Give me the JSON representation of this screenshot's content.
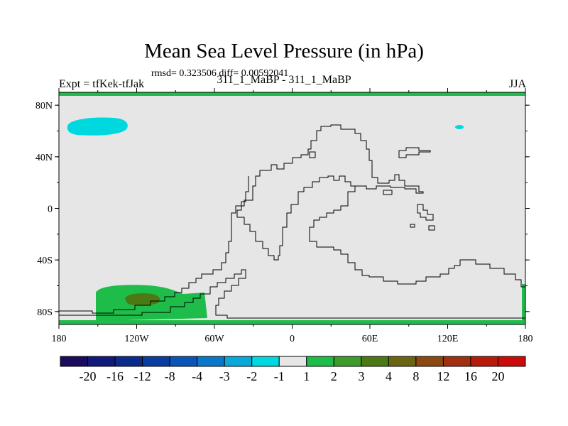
{
  "header": {
    "title": "Mean Sea Level Pressure (in hPa)",
    "stats": "rmsd= 0.323506 diff= 0.00592041",
    "left": "Expt = tfKek-tfJak",
    "center": "311_1_MaBP - 311_1_MaBP",
    "right": "JJA"
  },
  "map": {
    "background_color": "#e6e6e6",
    "frame_color": "#000000",
    "band_color": "#1ebd4a",
    "x_ticks": [
      "180",
      "120W",
      "60W",
      "0",
      "60E",
      "120E",
      "180"
    ],
    "y_ticks": [
      "80N",
      "40N",
      "0",
      "40S",
      "80S"
    ]
  },
  "colorbar": {
    "labels": [
      "-20",
      "-16",
      "-12",
      "-8",
      "-4",
      "-3",
      "-2",
      "-1",
      "1",
      "2",
      "3",
      "4",
      "8",
      "12",
      "16",
      "20"
    ],
    "colors": [
      "#1c0a5e",
      "#101a7a",
      "#0a2a8c",
      "#0a3da0",
      "#0a55b8",
      "#0a78c8",
      "#08a8d8",
      "#00d8e0",
      "#e6e6e6",
      "#1ebd4a",
      "#3d9c2c",
      "#4b7a14",
      "#6b6410",
      "#8a4a10",
      "#a03010",
      "#b81a0a",
      "#cc0a08"
    ]
  }
}
